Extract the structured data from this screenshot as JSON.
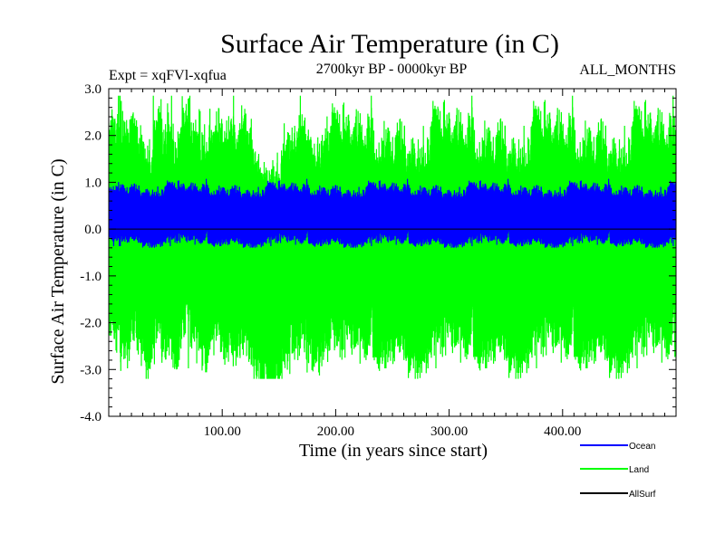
{
  "chart_data": {
    "type": "line",
    "title": "Surface Air Temperature (in C)",
    "subtitle": "2700kyr BP - 0000kyr BP",
    "left_label": "Expt = xqFVl-xqfua",
    "right_label": "ALL_MONTHS",
    "xlabel": "Time (in years since start)",
    "ylabel": "Surface Air Temperature (in C)",
    "xlim": [
      0,
      500
    ],
    "ylim": [
      -4.0,
      3.0
    ],
    "x_ticks": [
      100,
      200,
      300,
      400
    ],
    "x_tick_labels": [
      "100.00",
      "200.00",
      "300.00",
      "400.00"
    ],
    "y_ticks": [
      3.0,
      2.0,
      1.0,
      0.0,
      -1.0,
      -2.0,
      -3.0,
      -4.0
    ],
    "y_tick_labels": [
      "3.0",
      "2.0",
      "1.0",
      "0.0",
      "-1.0",
      "-2.0",
      "-3.0",
      "-4.0"
    ],
    "legend_position": "bottom-right",
    "series": [
      {
        "name": "Land",
        "color": "#00ff00",
        "mean": -0.05,
        "band_low": -2.3,
        "band_high": 2.2,
        "min": -3.2,
        "max": 2.85,
        "samples": 5900
      },
      {
        "name": "Ocean",
        "color": "#0000ff",
        "mean": 0.35,
        "band_low": -0.15,
        "band_high": 0.95,
        "min": -0.4,
        "max": 1.5,
        "samples": 5900
      },
      {
        "name": "AllSurf",
        "color": "#000000",
        "mean": 0.0,
        "band_low": 0.0,
        "band_high": 0.0,
        "min": 0.0,
        "max": 0.0,
        "samples": 2
      }
    ],
    "legend": [
      "Ocean",
      "Land",
      "AllSurf"
    ]
  }
}
